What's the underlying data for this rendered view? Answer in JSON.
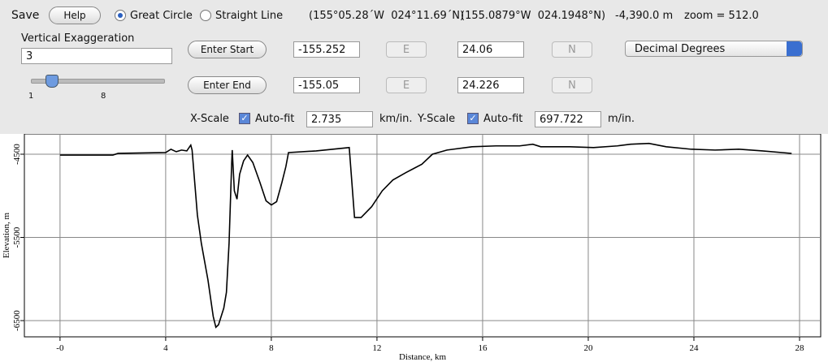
{
  "toolbar": {
    "save": "Save",
    "help": "Help",
    "great_circle": "Great Circle",
    "straight_line": "Straight Line",
    "coord_dms": "(155°05.28´W  024°11.69´N)",
    "coord_decimal": "(155.0879°W  024.1948°N)",
    "elevation": "-4,390.0 m",
    "zoom": "zoom = 512.0",
    "vertical_exaggeration_label": "Vertical Exaggeration",
    "vertical_exaggeration": "3",
    "slider_min": "1",
    "slider_max": "8",
    "enter_start": "Enter Start",
    "start_lon": "-155.252",
    "start_lon_hemi": "E",
    "start_lat": "24.06",
    "start_lat_hemi": "N",
    "enter_end": "Enter End",
    "end_lon": "-155.05",
    "end_lon_hemi": "E",
    "end_lat": "24.226",
    "end_lat_hemi": "N",
    "format": "Decimal Degrees",
    "x_scale_label": "X-Scale",
    "x_autofit": "Auto-fit",
    "x_scale": "2.735",
    "x_unit": "km/in.",
    "y_scale_label": "Y-Scale",
    "y_autofit": "Auto-fit",
    "y_scale": "697.722",
    "y_unit": "m/in."
  },
  "chart_data": {
    "type": "line",
    "x_label": "Distance, km",
    "y_label": "Elevation, m",
    "xlim": [
      -1.35,
      28.8
    ],
    "ylim": [
      -6695,
      -4256
    ],
    "xticks": [
      {
        "value": 0,
        "label": "-0"
      },
      4,
      8,
      12,
      16,
      20,
      24,
      28
    ],
    "yticks": [
      -6500,
      -5500,
      -4500
    ],
    "grid": true,
    "series": [
      {
        "color": "#000000",
        "x": [
          0,
          2,
          2.2,
          4.0,
          4.2,
          4.4,
          4.6,
          4.8,
          4.95,
          5.0,
          5.2,
          5.35,
          5.6,
          5.8,
          5.9,
          6.0,
          6.2,
          6.3,
          6.4,
          6.5,
          6.52,
          6.6,
          6.7,
          6.8,
          6.95,
          7.1,
          7.3,
          7.57,
          7.8,
          8.0,
          8.2,
          8.4,
          8.55,
          8.65,
          9.7,
          10.95,
          11.15,
          11.4,
          11.8,
          12.2,
          12.6,
          13.1,
          13.7,
          14.1,
          14.65,
          15.6,
          16.5,
          17.4,
          17.9,
          18.2,
          19.3,
          20.2,
          21.1,
          21.6,
          22.3,
          22.95,
          23.9,
          24.8,
          25.7,
          26.6,
          27.7
        ],
        "values": [
          -4510,
          -4510,
          -4490,
          -4480,
          -4440,
          -4470,
          -4450,
          -4460,
          -4390,
          -4450,
          -5230,
          -5570,
          -6010,
          -6450,
          -6580,
          -6550,
          -6350,
          -6160,
          -5570,
          -4600,
          -4450,
          -4940,
          -5040,
          -4740,
          -4580,
          -4510,
          -4600,
          -4840,
          -5060,
          -5110,
          -5070,
          -4840,
          -4650,
          -4480,
          -4460,
          -4420,
          -5260,
          -5260,
          -5130,
          -4940,
          -4810,
          -4720,
          -4620,
          -4500,
          -4450,
          -4410,
          -4400,
          -4400,
          -4380,
          -4410,
          -4410,
          -4420,
          -4400,
          -4380,
          -4370,
          -4410,
          -4440,
          -4450,
          -4440,
          -4460,
          -4490
        ]
      }
    ]
  }
}
